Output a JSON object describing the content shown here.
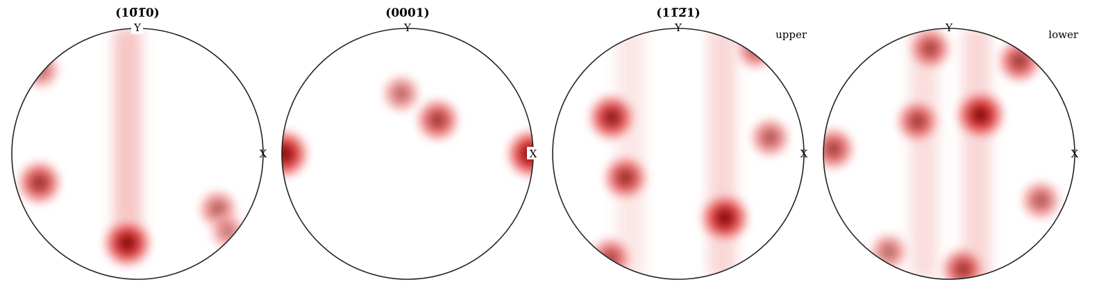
{
  "chart_data": [
    {
      "type": "heatmap",
      "title": "(10̅1̅0)",
      "hemisphere": "",
      "axis_labels": {
        "x": "X",
        "y": "Y"
      },
      "density_peaks": [
        {
          "x": -0.78,
          "y": -0.23,
          "intensity": 0.75
        },
        {
          "x": -0.08,
          "y": -0.71,
          "intensity": 1.0
        },
        {
          "x": 0.64,
          "y": -0.44,
          "intensity": 0.45
        },
        {
          "x": -0.77,
          "y": 0.67,
          "intensity": 0.4
        },
        {
          "x": 0.72,
          "y": -0.62,
          "intensity": 0.3
        }
      ],
      "girdles": [
        {
          "x": -0.08,
          "y_range": [
            -0.6,
            1.0
          ],
          "intensity": 0.35
        }
      ]
    },
    {
      "type": "heatmap",
      "title": "(0001)",
      "hemisphere": "",
      "axis_labels": {
        "x": "X",
        "y": "Y"
      },
      "density_peaks": [
        {
          "x": -0.98,
          "y": 0.0,
          "intensity": 1.0
        },
        {
          "x": 0.98,
          "y": 0.0,
          "intensity": 1.0
        },
        {
          "x": -0.05,
          "y": 0.48,
          "intensity": 0.4
        },
        {
          "x": 0.24,
          "y": 0.27,
          "intensity": 0.7
        }
      ],
      "girdles": []
    },
    {
      "type": "heatmap",
      "title": "(11̅2̅1)",
      "hemisphere": "upper",
      "axis_labels": {
        "x": "X",
        "y": "Y"
      },
      "density_peaks": [
        {
          "x": -0.53,
          "y": 0.29,
          "intensity": 0.9
        },
        {
          "x": -0.42,
          "y": -0.19,
          "intensity": 0.75
        },
        {
          "x": 0.37,
          "y": -0.51,
          "intensity": 1.0
        },
        {
          "x": 0.73,
          "y": 0.13,
          "intensity": 0.5
        },
        {
          "x": -0.54,
          "y": -0.83,
          "intensity": 0.6
        },
        {
          "x": 0.62,
          "y": 0.83,
          "intensity": 0.5
        }
      ],
      "girdles": [
        {
          "x": -0.38,
          "y_range": [
            -1.0,
            1.0
          ],
          "intensity": 0.15
        },
        {
          "x": 0.35,
          "y_range": [
            -1.0,
            1.0
          ],
          "intensity": 0.25
        }
      ]
    },
    {
      "type": "heatmap",
      "title": "",
      "hemisphere": "lower",
      "axis_labels": {
        "x": "X",
        "y": "Y"
      },
      "density_peaks": [
        {
          "x": -0.25,
          "y": 0.26,
          "intensity": 0.65
        },
        {
          "x": 0.25,
          "y": 0.31,
          "intensity": 1.0
        },
        {
          "x": -0.92,
          "y": 0.04,
          "intensity": 0.65
        },
        {
          "x": 0.73,
          "y": -0.37,
          "intensity": 0.5
        },
        {
          "x": -0.15,
          "y": 0.84,
          "intensity": 0.6
        },
        {
          "x": 0.56,
          "y": 0.74,
          "intensity": 0.7
        },
        {
          "x": 0.11,
          "y": -0.92,
          "intensity": 0.7
        },
        {
          "x": -0.48,
          "y": -0.78,
          "intensity": 0.4
        }
      ],
      "girdles": [
        {
          "x": -0.2,
          "y_range": [
            -1.0,
            1.0
          ],
          "intensity": 0.2
        },
        {
          "x": 0.22,
          "y_range": [
            -1.0,
            1.0
          ],
          "intensity": 0.25
        }
      ]
    }
  ]
}
